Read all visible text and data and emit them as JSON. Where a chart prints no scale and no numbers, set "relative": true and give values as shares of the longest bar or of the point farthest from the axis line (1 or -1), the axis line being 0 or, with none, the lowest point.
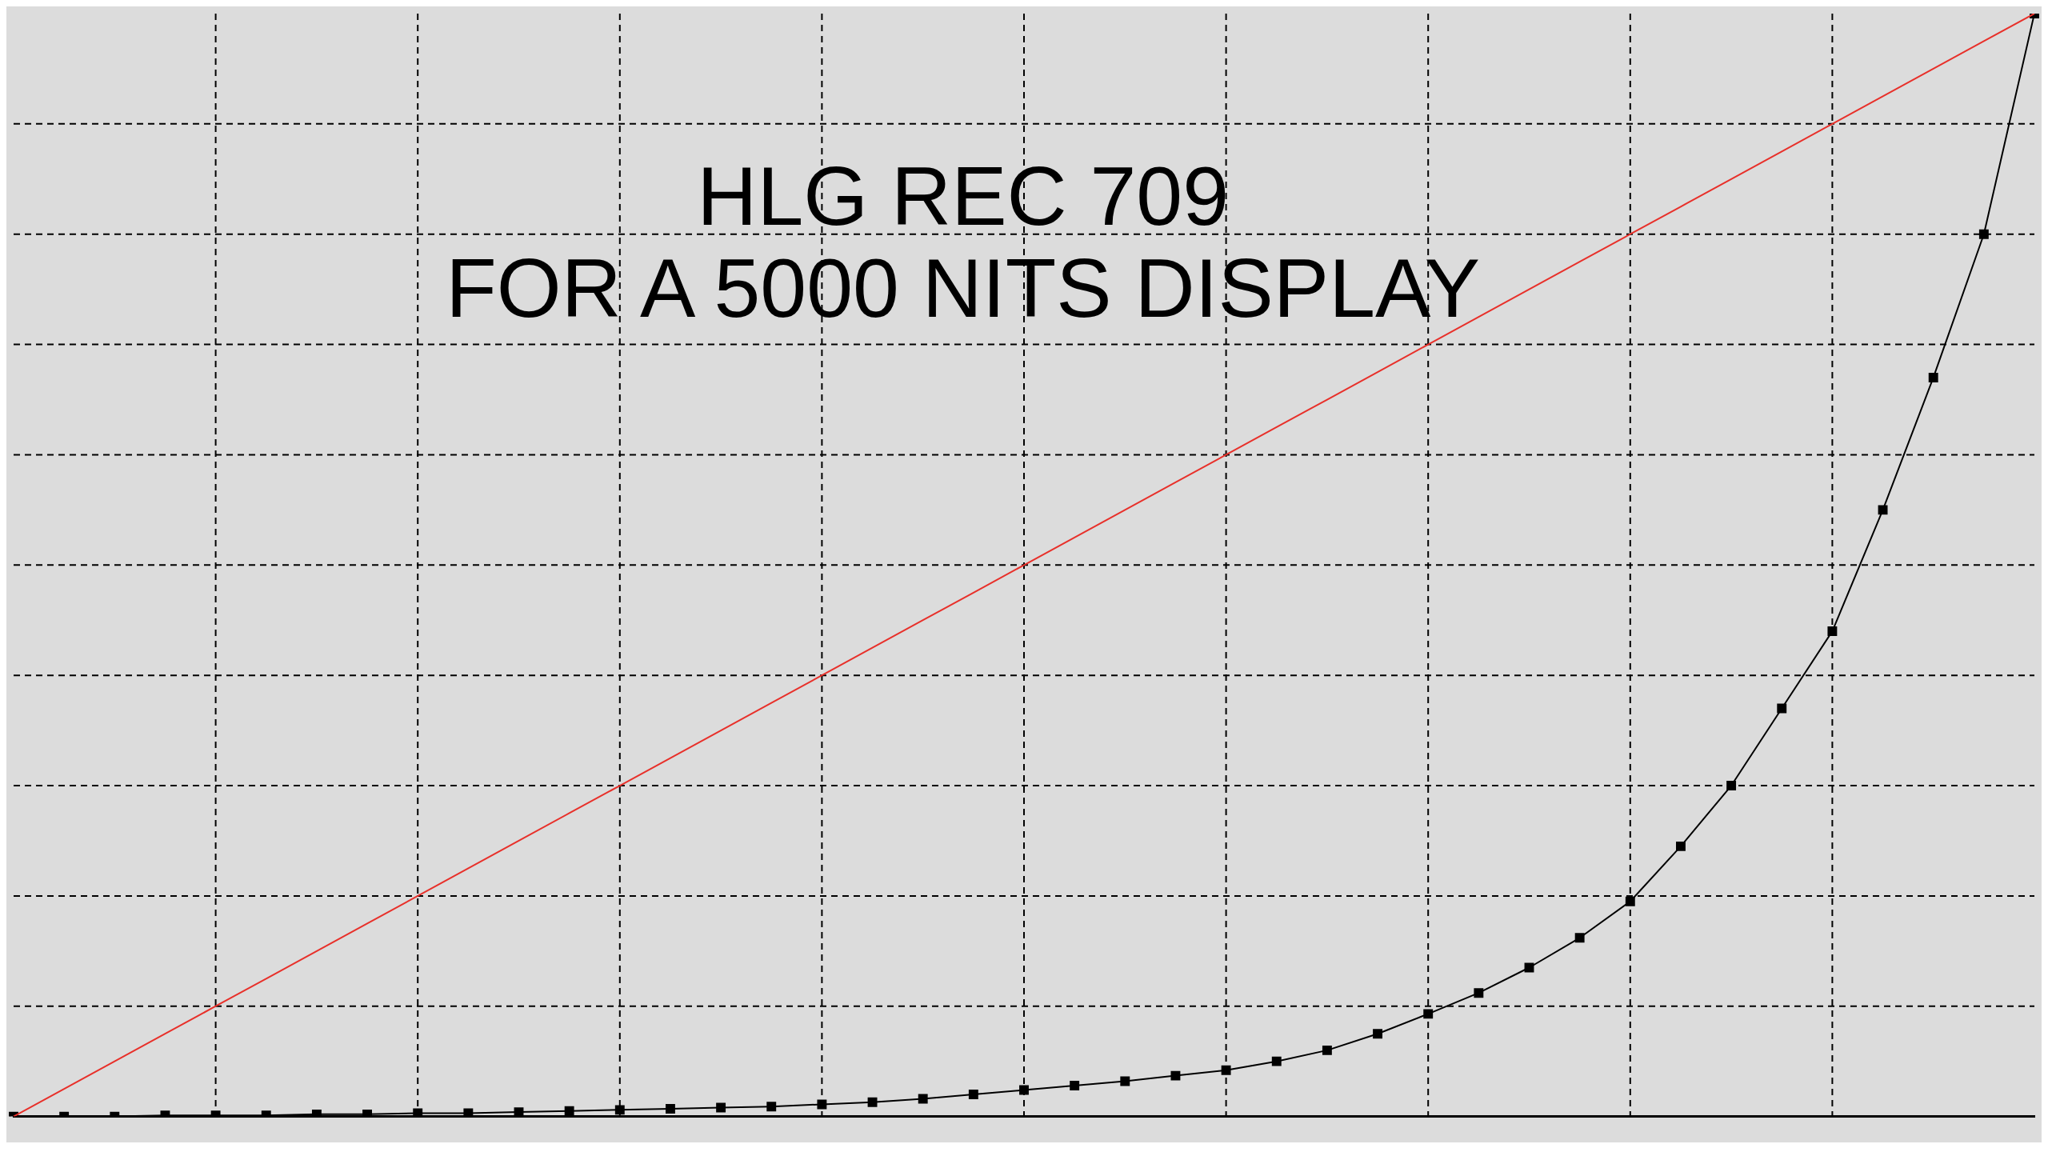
{
  "chart_data": {
    "type": "line",
    "title": "HLG REC 709\nFOR A 5000 NITS DISPLAY",
    "relative": true,
    "grid": true,
    "legend": false,
    "categories": [
      null,
      null,
      null,
      null,
      null,
      null,
      null,
      null,
      null,
      null,
      null,
      null,
      null,
      null,
      null,
      null,
      null,
      null,
      null,
      null,
      null,
      null,
      null,
      null,
      null,
      null,
      null,
      null,
      null,
      null,
      null,
      null,
      null,
      null,
      null,
      null,
      null,
      null,
      null,
      null,
      null
    ],
    "series": [
      {
        "color": "#e8302a",
        "marker": "none",
        "values": [
          0,
          0.025,
          0.05,
          0.075,
          0.1,
          0.125,
          0.15,
          0.175,
          0.2,
          0.225,
          0.25,
          0.275,
          0.3,
          0.325,
          0.35,
          0.375,
          0.4,
          0.425,
          0.45,
          0.475,
          0.5,
          0.525,
          0.55,
          0.575,
          0.6,
          0.625,
          0.65,
          0.675,
          0.7,
          0.725,
          0.75,
          0.775,
          0.8,
          0.825,
          0.85,
          0.875,
          0.9,
          0.925,
          0.95,
          0.975,
          1
        ]
      },
      {
        "color": "#000000",
        "marker": "square",
        "values": [
          0,
          0,
          0,
          0.001,
          0.001,
          0.001,
          0.002,
          0.002,
          0.003,
          0.003,
          0.004,
          0.005,
          0.006,
          0.007,
          0.008,
          0.009,
          0.011,
          0.013,
          0.016,
          0.02,
          0.024,
          0.028,
          0.032,
          0.037,
          0.042,
          0.05,
          0.06,
          0.075,
          0.093,
          0.112,
          0.135,
          0.162,
          0.195,
          0.245,
          0.3,
          0.37,
          0.44,
          0.55,
          0.67,
          0.8,
          1
        ]
      }
    ]
  }
}
